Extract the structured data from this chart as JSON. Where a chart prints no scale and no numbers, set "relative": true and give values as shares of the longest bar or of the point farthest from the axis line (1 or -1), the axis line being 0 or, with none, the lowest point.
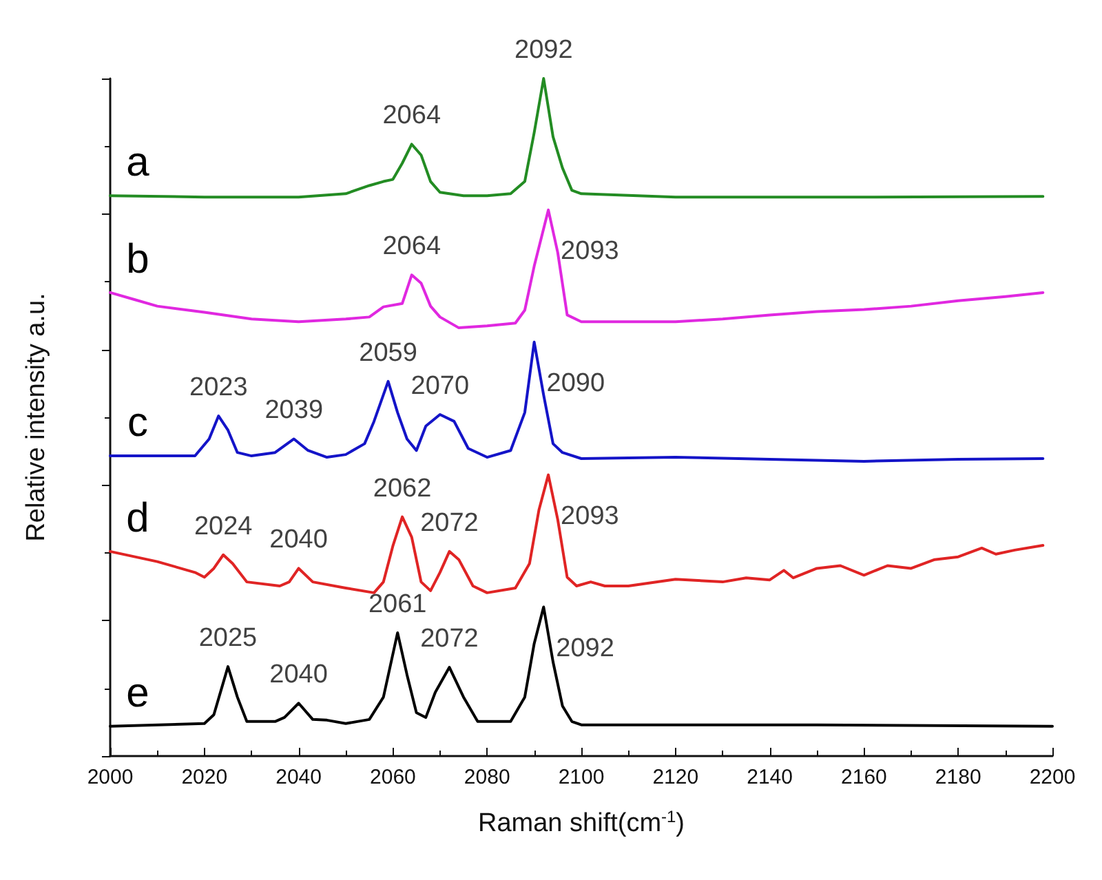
{
  "chart_data": {
    "type": "line",
    "relative": true,
    "xlabel": "Raman shift(cm$^{-1}$)",
    "ylabel": "Relative intensity a.u.",
    "xlim": [
      2000,
      2200
    ],
    "xticks": [
      2000,
      2020,
      2040,
      2060,
      2080,
      2100,
      2120,
      2140,
      2160,
      2180,
      2200
    ],
    "grid": false,
    "legend": false,
    "marker": "none",
    "line_style": "solid",
    "series": [
      {
        "name": "a",
        "color": "#238c23",
        "x": [
          2000,
          2020,
          2040,
          2050,
          2055,
          2058,
          2060,
          2062,
          2064,
          2066,
          2068,
          2070,
          2075,
          2080,
          2085,
          2088,
          2090,
          2092,
          2094,
          2096,
          2098,
          2100,
          2120,
          2160,
          2198
        ],
        "values": [
          0.827,
          0.825,
          0.825,
          0.83,
          0.842,
          0.848,
          0.851,
          0.875,
          0.903,
          0.887,
          0.848,
          0.832,
          0.827,
          0.827,
          0.83,
          0.848,
          0.92,
          1.0,
          0.914,
          0.868,
          0.835,
          0.83,
          0.825,
          0.825,
          0.826
        ]
      },
      {
        "name": "b",
        "color": "#e028e0",
        "x": [
          2000,
          2005,
          2010,
          2020,
          2030,
          2040,
          2050,
          2055,
          2058,
          2062,
          2064,
          2066,
          2068,
          2070,
          2074,
          2080,
          2086,
          2088,
          2090,
          2093,
          2095,
          2097,
          2100,
          2110,
          2120,
          2130,
          2140,
          2150,
          2160,
          2170,
          2180,
          2190,
          2198
        ],
        "values": [
          0.684,
          0.674,
          0.664,
          0.655,
          0.645,
          0.641,
          0.645,
          0.648,
          0.663,
          0.668,
          0.71,
          0.698,
          0.664,
          0.648,
          0.632,
          0.635,
          0.639,
          0.658,
          0.723,
          0.806,
          0.743,
          0.651,
          0.641,
          0.641,
          0.641,
          0.645,
          0.651,
          0.656,
          0.659,
          0.664,
          0.672,
          0.678,
          0.684
        ]
      },
      {
        "name": "c",
        "color": "#1414c8",
        "x": [
          2000,
          2018,
          2021,
          2023,
          2025,
          2027,
          2030,
          2035,
          2039,
          2042,
          2046,
          2050,
          2054,
          2056,
          2059,
          2061,
          2063,
          2065,
          2067,
          2070,
          2073,
          2076,
          2080,
          2085,
          2088,
          2090,
          2092,
          2094,
          2096,
          2100,
          2120,
          2140,
          2160,
          2180,
          2198
        ],
        "values": [
          0.443,
          0.443,
          0.468,
          0.502,
          0.481,
          0.448,
          0.443,
          0.448,
          0.468,
          0.451,
          0.441,
          0.445,
          0.461,
          0.494,
          0.553,
          0.507,
          0.468,
          0.451,
          0.487,
          0.504,
          0.494,
          0.454,
          0.441,
          0.451,
          0.507,
          0.611,
          0.533,
          0.461,
          0.448,
          0.439,
          0.441,
          0.438,
          0.435,
          0.438,
          0.439
        ]
      },
      {
        "name": "d",
        "color": "#e02424",
        "x": [
          2000,
          2010,
          2018,
          2020,
          2022,
          2024,
          2026,
          2029,
          2036,
          2038,
          2040,
          2043,
          2050,
          2056,
          2058,
          2060,
          2062,
          2064,
          2066,
          2068,
          2070,
          2072,
          2074,
          2077,
          2080,
          2086,
          2089,
          2091,
          2093,
          2095,
          2097,
          2099,
          2102,
          2105,
          2110,
          2120,
          2130,
          2135,
          2140,
          2143,
          2145,
          2150,
          2155,
          2160,
          2165,
          2170,
          2175,
          2180,
          2185,
          2188,
          2192,
          2198
        ],
        "values": [
          0.302,
          0.287,
          0.271,
          0.264,
          0.277,
          0.297,
          0.284,
          0.257,
          0.251,
          0.257,
          0.277,
          0.257,
          0.248,
          0.241,
          0.257,
          0.31,
          0.353,
          0.323,
          0.257,
          0.244,
          0.271,
          0.302,
          0.29,
          0.251,
          0.241,
          0.248,
          0.284,
          0.363,
          0.415,
          0.349,
          0.264,
          0.251,
          0.257,
          0.251,
          0.251,
          0.261,
          0.257,
          0.263,
          0.26,
          0.274,
          0.263,
          0.277,
          0.281,
          0.267,
          0.281,
          0.277,
          0.29,
          0.294,
          0.307,
          0.298,
          0.304,
          0.311
        ]
      },
      {
        "name": "e",
        "color": "#000000",
        "x": [
          2000,
          2020,
          2022,
          2025,
          2027,
          2029,
          2035,
          2037,
          2040,
          2043,
          2046,
          2050,
          2055,
          2058,
          2061,
          2063,
          2065,
          2067,
          2069,
          2072,
          2075,
          2078,
          2085,
          2088,
          2090,
          2092,
          2094,
          2096,
          2098,
          2100,
          2150,
          2200
        ],
        "values": [
          0.044,
          0.048,
          0.061,
          0.132,
          0.087,
          0.051,
          0.051,
          0.057,
          0.078,
          0.054,
          0.053,
          0.048,
          0.054,
          0.087,
          0.182,
          0.12,
          0.064,
          0.057,
          0.094,
          0.131,
          0.087,
          0.051,
          0.051,
          0.087,
          0.166,
          0.22,
          0.139,
          0.074,
          0.051,
          0.046,
          0.046,
          0.044
        ]
      }
    ],
    "annotations": [
      {
        "text": "2064",
        "x": 2064,
        "y": 0.903
      },
      {
        "text": "2092",
        "x": 2092,
        "y": 1.0
      },
      {
        "text": "2064",
        "x": 2064,
        "y": 0.71
      },
      {
        "text": "2093",
        "x": 2093,
        "y": 0.806
      },
      {
        "text": "2023",
        "x": 2023,
        "y": 0.502
      },
      {
        "text": "2039",
        "x": 2039,
        "y": 0.468
      },
      {
        "text": "2059",
        "x": 2059,
        "y": 0.553
      },
      {
        "text": "2070",
        "x": 2070,
        "y": 0.504
      },
      {
        "text": "2090",
        "x": 2090,
        "y": 0.611
      },
      {
        "text": "2024",
        "x": 2024,
        "y": 0.297
      },
      {
        "text": "2040",
        "x": 2040,
        "y": 0.277
      },
      {
        "text": "2062",
        "x": 2062,
        "y": 0.353
      },
      {
        "text": "2072",
        "x": 2072,
        "y": 0.302
      },
      {
        "text": "2093",
        "x": 2093,
        "y": 0.415
      },
      {
        "text": "2025",
        "x": 2025,
        "y": 0.132
      },
      {
        "text": "2040",
        "x": 2040,
        "y": 0.078
      },
      {
        "text": "2061",
        "x": 2061,
        "y": 0.182
      },
      {
        "text": "2072",
        "x": 2072,
        "y": 0.131
      },
      {
        "text": "2092",
        "x": 2092,
        "y": 0.22
      }
    ]
  }
}
